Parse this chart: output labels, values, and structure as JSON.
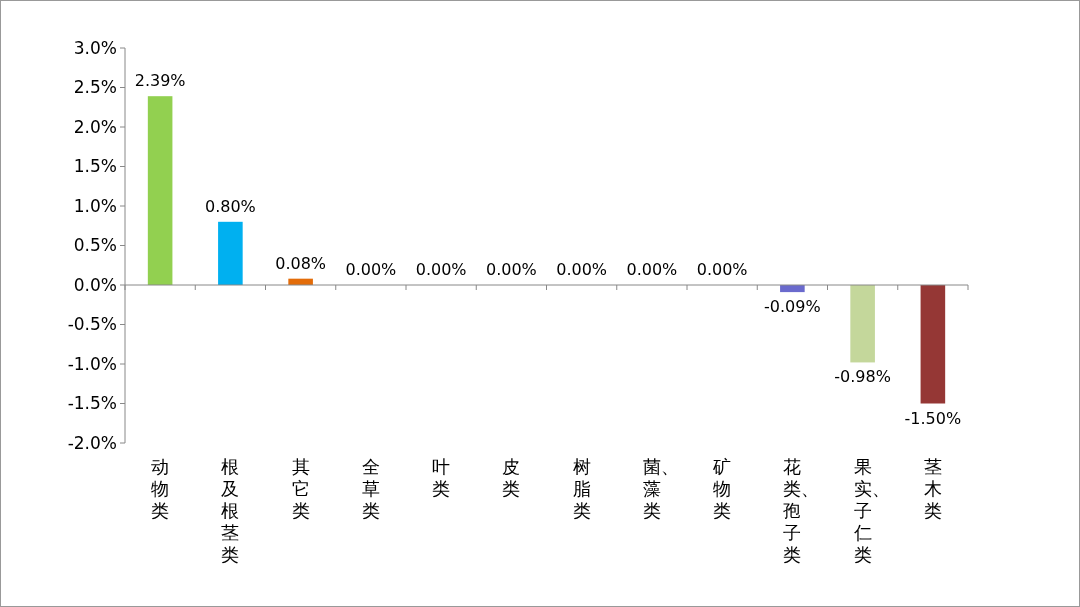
{
  "chart_data": {
    "type": "bar",
    "categories": [
      "动物类",
      "根及根茎类",
      "其它类",
      "全草类",
      "叶类",
      "皮类",
      "树脂类",
      "菌、藻类",
      "矿物类",
      "花类、孢子类",
      "果实、子仁类",
      "茎木类"
    ],
    "values": [
      2.39,
      0.8,
      0.08,
      0,
      0,
      0,
      0,
      0,
      0,
      -0.09,
      -0.98,
      -1.5
    ],
    "colors": [
      "#92d050",
      "#00b0f0",
      "#e36c09",
      "#999999",
      "#999999",
      "#999999",
      "#999999",
      "#999999",
      "#999999",
      "#6a6acd",
      "#c4d79b",
      "#953735"
    ],
    "value_labels": [
      "2.39%",
      "0.80%",
      "0.08%",
      "0.00%",
      "0.00%",
      "0.00%",
      "0.00%",
      "0.00%",
      "0.00%",
      "-0.09%",
      "-0.98%",
      "-1.50%"
    ],
    "ylim": [
      -2,
      3
    ],
    "yticks": [
      {
        "value": -2,
        "label": "-2.0%"
      },
      {
        "value": -1.5,
        "label": "-1.5%"
      },
      {
        "value": -1,
        "label": "-1.0%"
      },
      {
        "value": -0.5,
        "label": "-0.5%"
      },
      {
        "value": 0,
        "label": "0.0%"
      },
      {
        "value": 0.5,
        "label": "0.5%"
      },
      {
        "value": 1,
        "label": "1.0%"
      },
      {
        "value": 1.5,
        "label": "1.5%"
      },
      {
        "value": 2,
        "label": "2.0%"
      },
      {
        "value": 2.5,
        "label": "2.5%"
      },
      {
        "value": 3,
        "label": "3.0%"
      }
    ]
  }
}
